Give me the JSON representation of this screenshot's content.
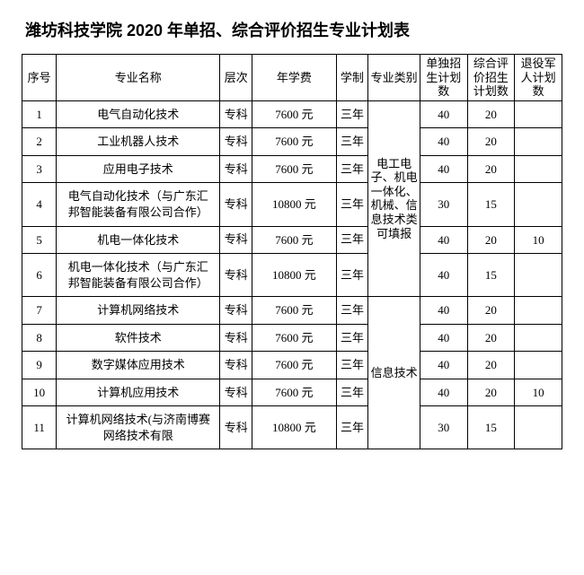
{
  "title": "潍坊科技学院 2020 年单招、综合评价招生专业计划表",
  "headers": {
    "idx": "序号",
    "name": "专业名称",
    "level": "层次",
    "fee": "年学费",
    "duration": "学制",
    "category": "专业类别",
    "solo": "单独招生计划数",
    "comp": "综合评价招生计划数",
    "veteran": "退役军人计划数"
  },
  "categories": {
    "cat1": "电工电子、机电一体化、机械、信息技术类可填报",
    "cat2": "信息技术"
  },
  "rows": [
    {
      "idx": "1",
      "name": "电气自动化技术",
      "level": "专科",
      "fee": "7600 元",
      "duration": "三年",
      "solo": "40",
      "comp": "20",
      "vet": ""
    },
    {
      "idx": "2",
      "name": "工业机器人技术",
      "level": "专科",
      "fee": "7600 元",
      "duration": "三年",
      "solo": "40",
      "comp": "20",
      "vet": ""
    },
    {
      "idx": "3",
      "name": "应用电子技术",
      "level": "专科",
      "fee": "7600 元",
      "duration": "三年",
      "solo": "40",
      "comp": "20",
      "vet": ""
    },
    {
      "idx": "4",
      "name": "电气自动化技术（与广东汇邦智能装备有限公司合作）",
      "level": "专科",
      "fee": "10800 元",
      "duration": "三年",
      "solo": "30",
      "comp": "15",
      "vet": ""
    },
    {
      "idx": "5",
      "name": "机电一体化技术",
      "level": "专科",
      "fee": "7600 元",
      "duration": "三年",
      "solo": "40",
      "comp": "20",
      "vet": "10"
    },
    {
      "idx": "6",
      "name": "机电一体化技术（与广东汇邦智能装备有限公司合作）",
      "level": "专科",
      "fee": "10800 元",
      "duration": "三年",
      "solo": "40",
      "comp": "15",
      "vet": ""
    },
    {
      "idx": "7",
      "name": "计算机网络技术",
      "level": "专科",
      "fee": "7600 元",
      "duration": "三年",
      "solo": "40",
      "comp": "20",
      "vet": ""
    },
    {
      "idx": "8",
      "name": "软件技术",
      "level": "专科",
      "fee": "7600 元",
      "duration": "三年",
      "solo": "40",
      "comp": "20",
      "vet": ""
    },
    {
      "idx": "9",
      "name": "数字媒体应用技术",
      "level": "专科",
      "fee": "7600 元",
      "duration": "三年",
      "solo": "40",
      "comp": "20",
      "vet": ""
    },
    {
      "idx": "10",
      "name": "计算机应用技术",
      "level": "专科",
      "fee": "7600 元",
      "duration": "三年",
      "solo": "40",
      "comp": "20",
      "vet": "10"
    },
    {
      "idx": "11",
      "name": "计算机网络技术(与济南博赛网络技术有限",
      "level": "专科",
      "fee": "10800 元",
      "duration": "三年",
      "solo": "30",
      "comp": "15",
      "vet": ""
    }
  ],
  "styling": {
    "page_bg": "#ffffff",
    "text_color": "#000000",
    "border_color": "#000000",
    "title_fontsize_pt": 14,
    "body_fontsize_pt": 10,
    "cat1_rowspan": 6,
    "cat2_rowspan": 5
  }
}
